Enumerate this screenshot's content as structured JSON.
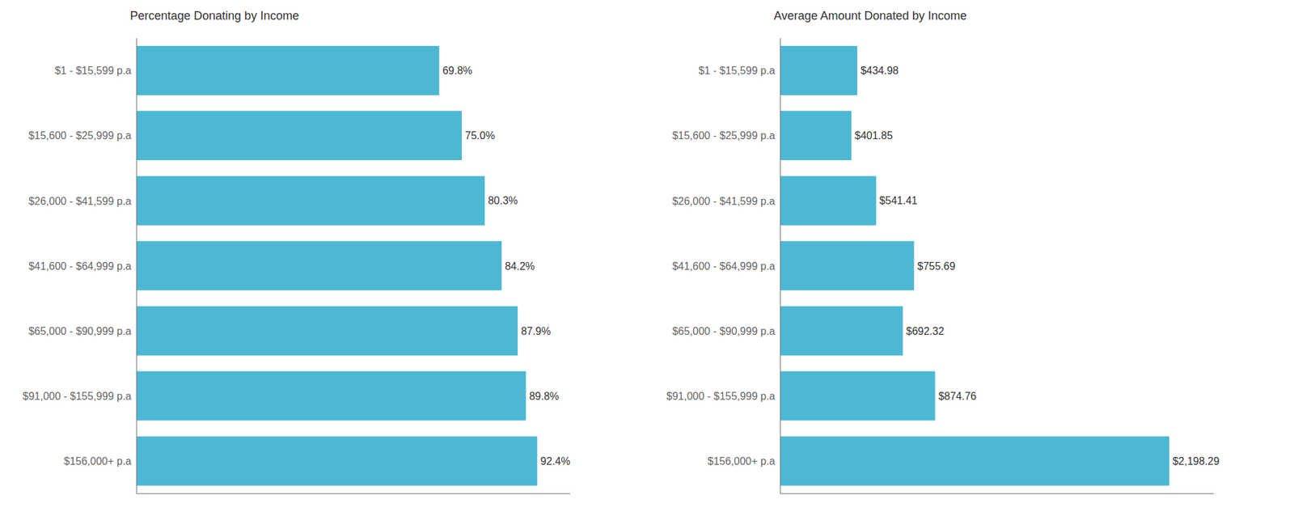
{
  "chart_data": [
    {
      "type": "bar",
      "orientation": "horizontal",
      "title": "Percentage Donating by Income",
      "categories": [
        "$1 - $15,599 p.a",
        "$15,600 - $25,999 p.a",
        "$26,000 - $41,599 p.a",
        "$41,600 - $64,999 p.a",
        "$65,000 - $90,999 p.a",
        "$91,000 - $155,999 p.a",
        "$156,000+ p.a"
      ],
      "values": [
        69.8,
        75.0,
        80.3,
        84.2,
        87.9,
        89.8,
        92.4
      ],
      "value_labels": [
        "69.8%",
        "75.0%",
        "80.3%",
        "84.2%",
        "87.9%",
        "89.8%",
        "92.4%"
      ],
      "color": "#4db8d4",
      "xlim": [
        0,
        100
      ],
      "data_labels": true,
      "tick_labels": "y",
      "grid": false
    },
    {
      "type": "bar",
      "orientation": "horizontal",
      "title": "Average Amount Donated by Income",
      "categories": [
        "$1 - $15,599 p.a",
        "$15,600 - $25,999 p.a",
        "$26,000 - $41,599 p.a",
        "$41,600 - $64,999 p.a",
        "$65,000 - $90,999 p.a",
        "$91,000 - $155,999 p.a",
        "$156,000+ p.a"
      ],
      "values": [
        434.98,
        401.85,
        541.41,
        755.69,
        692.32,
        874.76,
        2198.29
      ],
      "value_labels": [
        "$434.98",
        "$401.85",
        "$541.41",
        "$755.69",
        "$692.32",
        "$874.76",
        "$2,198.29"
      ],
      "color": "#4db8d4",
      "xlim": [
        0,
        2450
      ],
      "data_labels": true,
      "tick_labels": "y",
      "grid": false
    }
  ]
}
